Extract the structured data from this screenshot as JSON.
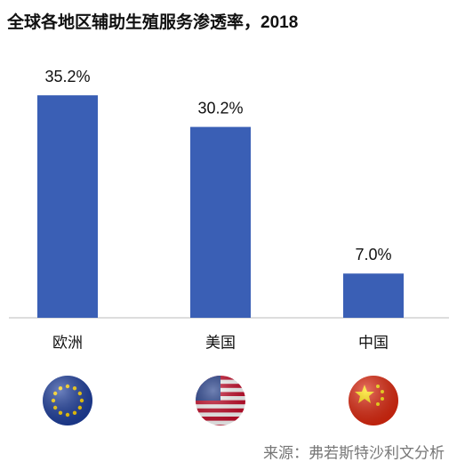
{
  "chart_data": {
    "type": "bar",
    "title": "全球各地区辅助生殖服务渗透率，2018",
    "categories": [
      "欧洲",
      "美国",
      "中国"
    ],
    "values": [
      35.2,
      30.2,
      7.0
    ],
    "value_labels": [
      "35.2%",
      "30.2%",
      "7.0%"
    ],
    "color": "#3a5fb5",
    "ylim": [
      0,
      40
    ],
    "source": "来源：弗若斯特沙利文分析"
  }
}
